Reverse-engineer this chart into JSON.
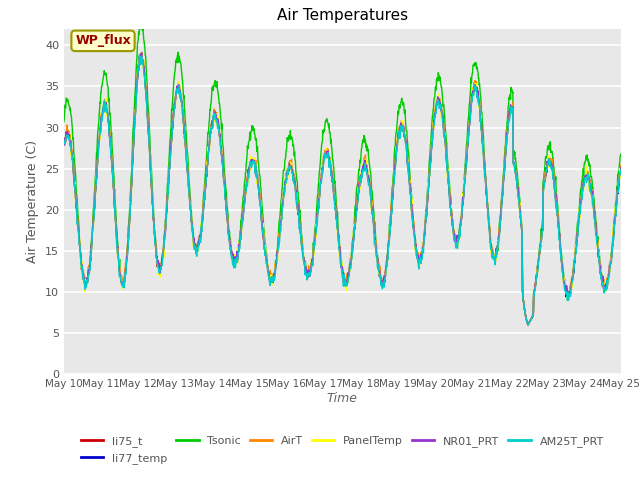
{
  "title": "Air Temperatures",
  "xlabel": "Time",
  "ylabel": "Air Temperature (C)",
  "ylim": [
    0,
    42
  ],
  "yticks": [
    0,
    5,
    10,
    15,
    20,
    25,
    30,
    35,
    40
  ],
  "background_color": "#e8e8e8",
  "legend_entries": [
    "li75_t",
    "li77_temp",
    "Tsonic",
    "AirT",
    "PanelTemp",
    "NR01_PRT",
    "AM25T_PRT"
  ],
  "legend_colors": [
    "#cc0000",
    "#0000cc",
    "#00cc00",
    "#ff8800",
    "#ffff00",
    "#9933cc",
    "#00cccc"
  ],
  "annotation_text": "WP_flux",
  "annotation_color": "#990000",
  "annotation_bg": "#ffffcc",
  "annotation_border": "#999900",
  "num_points": 1440
}
